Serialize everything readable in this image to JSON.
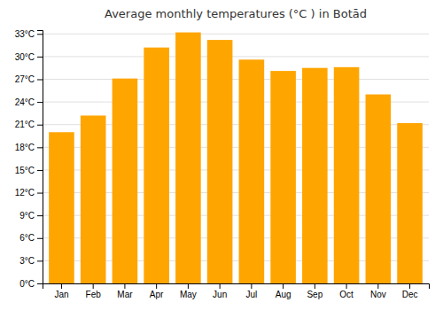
{
  "chart_data": {
    "type": "bar",
    "title": "Average monthly temperatures (°C ) in Botād",
    "categories": [
      "Jan",
      "Feb",
      "Mar",
      "Apr",
      "May",
      "Jun",
      "Jul",
      "Aug",
      "Sep",
      "Oct",
      "Nov",
      "Dec"
    ],
    "values": [
      20.0,
      22.2,
      27.1,
      31.2,
      33.2,
      32.2,
      29.6,
      28.1,
      28.5,
      28.6,
      25.0,
      21.2
    ],
    "color": "#FFA500",
    "ylim": [
      0,
      33.5
    ],
    "yticks": [
      {
        "value": 0,
        "label": "0°C"
      },
      {
        "value": 3,
        "label": "3°C"
      },
      {
        "value": 6,
        "label": "6°C"
      },
      {
        "value": 9,
        "label": "9°C"
      },
      {
        "value": 12,
        "label": "12°C"
      },
      {
        "value": 15,
        "label": "15°C"
      },
      {
        "value": 18,
        "label": "18°C"
      },
      {
        "value": 21,
        "label": "21°C"
      },
      {
        "value": 24,
        "label": "24°C"
      },
      {
        "value": 27,
        "label": "27°C"
      },
      {
        "value": 30,
        "label": "30°C"
      },
      {
        "value": 33,
        "label": "33°C"
      }
    ],
    "grid": true
  }
}
